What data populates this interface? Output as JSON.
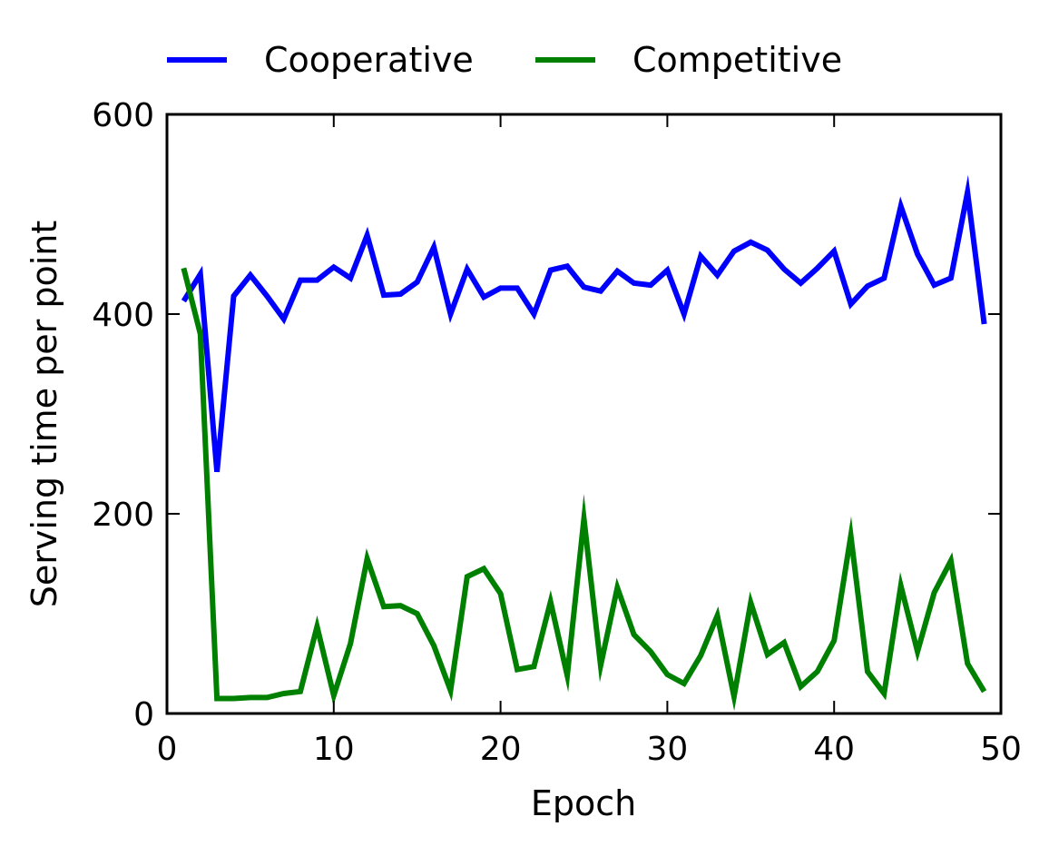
{
  "chart_data": {
    "type": "line",
    "title": "",
    "xlabel": "Epoch",
    "ylabel": "Serving time per point",
    "xlim": [
      0,
      50
    ],
    "ylim": [
      0,
      600
    ],
    "xticks": [
      "0",
      "10",
      "20",
      "30",
      "40",
      "50"
    ],
    "yticks": [
      "0",
      "200",
      "400",
      "600"
    ],
    "grid": false,
    "legend_position": "top, above plot",
    "x": [
      1,
      2,
      3,
      4,
      5,
      6,
      7,
      8,
      9,
      10,
      11,
      12,
      13,
      14,
      15,
      16,
      17,
      18,
      19,
      20,
      21,
      22,
      23,
      24,
      25,
      26,
      27,
      28,
      29,
      30,
      31,
      32,
      33,
      34,
      35,
      36,
      37,
      38,
      39,
      40,
      41,
      42,
      43,
      44,
      45,
      46,
      47,
      48,
      49
    ],
    "series": [
      {
        "name": "Cooperative",
        "color": "#0000ff",
        "values": [
          413,
          440,
          242,
          418,
          439,
          418,
          395,
          434,
          434,
          447,
          436,
          479,
          419,
          420,
          432,
          467,
          400,
          445,
          417,
          426,
          426,
          400,
          444,
          448,
          427,
          423,
          443,
          431,
          429,
          444,
          400,
          458,
          439,
          463,
          472,
          464,
          445,
          431,
          446,
          463,
          410,
          428,
          436,
          508,
          460,
          429,
          436,
          522,
          390
        ]
      },
      {
        "name": "Competitive",
        "color": "#008000",
        "values": [
          446,
          380,
          15,
          15,
          16,
          16,
          20,
          22,
          87,
          18,
          70,
          155,
          107,
          108,
          100,
          68,
          23,
          137,
          145,
          120,
          44,
          47,
          112,
          38,
          195,
          48,
          126,
          79,
          62,
          39,
          30,
          58,
          98,
          17,
          111,
          59,
          71,
          27,
          42,
          73,
          178,
          42,
          20,
          128,
          62,
          121,
          153,
          50,
          22
        ]
      }
    ]
  }
}
